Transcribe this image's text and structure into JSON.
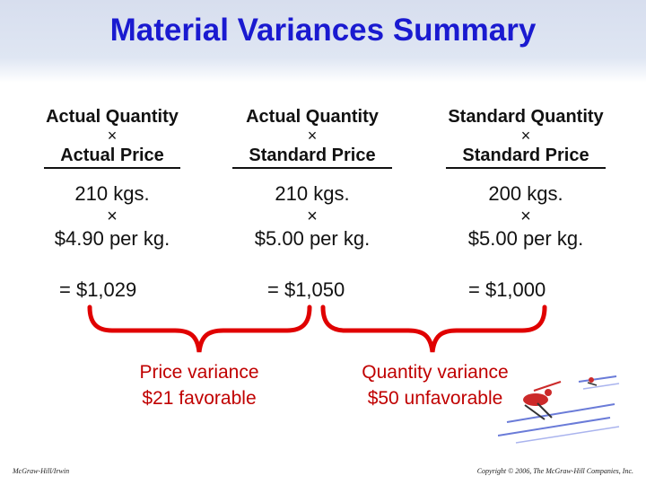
{
  "title": "Material Variances Summary",
  "columns": [
    {
      "line1": "Actual Quantity",
      "op": "×",
      "line2": "Actual Price",
      "qty": "210 kgs.",
      "op2": "×",
      "price": "$4.90 per kg."
    },
    {
      "line1": "Actual Quantity",
      "op": "×",
      "line2": "Standard Price",
      "qty": "210 kgs.",
      "op2": "×",
      "price": "$5.00 per kg."
    },
    {
      "line1": "Standard Quantity",
      "op": "×",
      "line2": "Standard Price",
      "qty": "200 kgs.",
      "op2": "×",
      "price": "$5.00 per kg."
    }
  ],
  "totals": [
    "= $1,029",
    "= $1,050",
    "= $1,000"
  ],
  "variances": {
    "price": {
      "line1": "Price variance",
      "line2": "$21 favorable"
    },
    "quantity": {
      "line1": "Quantity variance",
      "line2": "$50 unfavorable"
    }
  },
  "colors": {
    "title": "#1a1ad0",
    "brace": "#e00000",
    "variance_text": "#c00000"
  },
  "footer": {
    "left": "McGraw-Hill/Irwin",
    "right": "Copyright © 2006, The McGraw-Hill Companies, Inc."
  },
  "decoration": {
    "icon": "ski-jumper-clipart"
  }
}
